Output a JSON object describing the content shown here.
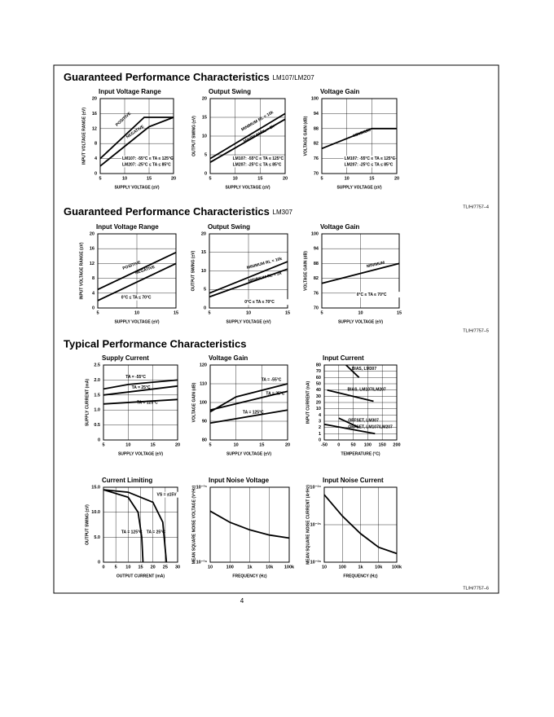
{
  "sections": [
    {
      "title": "Guaranteed Performance Characteristics",
      "subtitle": "LM107/LM207",
      "figure_id": "TL/H/7757–4"
    },
    {
      "title": "Guaranteed Performance Characteristics",
      "subtitle": "LM307",
      "figure_id": "TL/H/7757–5"
    },
    {
      "title": "Typical Performance Characteristics",
      "figure_id": "TL/H/7757–6"
    }
  ],
  "page_number": "4",
  "chart_data": [
    {
      "type": "line",
      "title": "Input Voltage Range",
      "xlabel": "SUPPLY VOLTAGE (±V)",
      "ylabel": "INPUT VOLTAGE RANGE (±V)",
      "xlim": [
        5,
        20
      ],
      "xticks": [
        5,
        10,
        15,
        20
      ],
      "ylim": [
        0,
        20
      ],
      "yticks": [
        0,
        4,
        8,
        12,
        16,
        20
      ],
      "grid": true,
      "series": [
        {
          "name": "POSITIVE",
          "color": "#000",
          "x": [
            5,
            14,
            20
          ],
          "values": [
            4,
            15,
            15
          ]
        },
        {
          "name": "NEGATIVE",
          "color": "#000",
          "x": [
            5,
            15,
            20
          ],
          "values": [
            2,
            12.5,
            15
          ]
        }
      ],
      "annotations": [
        "LM107: -55°C ≤ TA ≤ 125°C",
        "LM207: -25°C ≤ TA ≤ 85°C"
      ]
    },
    {
      "type": "line",
      "title": "Output Swing",
      "xlabel": "SUPPLY VOLTAGE (±V)",
      "ylabel": "OUTPUT SWING (±V)",
      "xlim": [
        5,
        20
      ],
      "xticks": [
        5,
        10,
        15,
        20
      ],
      "ylim": [
        0,
        20
      ],
      "yticks": [
        0,
        5,
        10,
        15,
        20
      ],
      "grid": true,
      "series": [
        {
          "name": "MINIMUM RL = 10k",
          "color": "#000",
          "x": [
            5,
            20
          ],
          "values": [
            4,
            16
          ]
        },
        {
          "name": "MINIMUM RL = 2k",
          "color": "#000",
          "x": [
            5,
            20
          ],
          "values": [
            3,
            14.5
          ]
        }
      ],
      "annotations": [
        "LM107: -55°C ≤ TA ≤ 125°C",
        "LM207: -25°C ≤ TA ≤ 85°C"
      ]
    },
    {
      "type": "line",
      "title": "Voltage Gain",
      "xlabel": "SUPPLY VOLTAGE (±V)",
      "ylabel": "VOLTAGE GAIN (dB)",
      "xlim": [
        5,
        20
      ],
      "xticks": [
        5,
        10,
        15,
        20
      ],
      "ylim": [
        70,
        100
      ],
      "yticks": [
        70,
        76,
        82,
        88,
        94,
        100
      ],
      "grid": true,
      "series": [
        {
          "name": "MINIMUM",
          "color": "#000",
          "x": [
            5,
            15,
            20
          ],
          "values": [
            80,
            88,
            88
          ]
        }
      ],
      "annotations": [
        "LM107: -55°C ≤ TA ≤ 125°C",
        "LM207: -25°C ≤ TA ≤ 85°C"
      ]
    },
    {
      "type": "line",
      "title": "Input Voltage Range",
      "xlabel": "SUPPLY VOLTAGE (±V)",
      "ylabel": "INPUT VOLTAGE RANGE (±V)",
      "xlim": [
        5,
        15
      ],
      "xticks": [
        5,
        10,
        15
      ],
      "ylim": [
        0,
        20
      ],
      "yticks": [
        0,
        4,
        8,
        12,
        16,
        20
      ],
      "grid": true,
      "series": [
        {
          "name": "POSITIVE",
          "color": "#000",
          "x": [
            5,
            15
          ],
          "values": [
            5,
            15
          ]
        },
        {
          "name": "NEGATIVE",
          "color": "#000",
          "x": [
            5,
            15
          ],
          "values": [
            2,
            12
          ]
        }
      ],
      "annotations": [
        "0°C ≤ TA ≤ 70°C"
      ]
    },
    {
      "type": "line",
      "title": "Output Swing",
      "xlabel": "SUPPLY VOLTAGE (±V)",
      "ylabel": "OUTPUT SWING (±V)",
      "xlim": [
        5,
        15
      ],
      "xticks": [
        5,
        10,
        15
      ],
      "ylim": [
        0,
        20
      ],
      "yticks": [
        0,
        5,
        10,
        15,
        20
      ],
      "grid": true,
      "series": [
        {
          "name": "MINIMUM RL = 10k",
          "color": "#000",
          "x": [
            5,
            15
          ],
          "values": [
            4,
            12.5
          ]
        },
        {
          "name": "MINIMUM RL = 2k",
          "color": "#000",
          "x": [
            5,
            15
          ],
          "values": [
            3,
            10.5
          ]
        }
      ],
      "annotations": [
        "0°C ≤ TA ≤ 70°C"
      ]
    },
    {
      "type": "line",
      "title": "Voltage Gain",
      "xlabel": "SUPPLY VOLTAGE (±V)",
      "ylabel": "VOLTAGE GAIN (dB)",
      "xlim": [
        5,
        15
      ],
      "xticks": [
        5,
        10,
        15
      ],
      "ylim": [
        70,
        100
      ],
      "yticks": [
        70,
        76,
        82,
        88,
        94,
        100
      ],
      "grid": true,
      "series": [
        {
          "name": "MINIMUM",
          "color": "#000",
          "x": [
            5,
            15
          ],
          "values": [
            80,
            88
          ]
        }
      ],
      "annotations": [
        "0°C ≤ TA ≤ 70°C"
      ]
    },
    {
      "type": "line",
      "title": "Supply Current",
      "xlabel": "SUPPLY VOLTAGE (±V)",
      "ylabel": "SUPPLY CURRENT (mA)",
      "xlim": [
        5,
        20
      ],
      "xticks": [
        5,
        10,
        15,
        20
      ],
      "ylim": [
        0,
        2.5
      ],
      "yticks": [
        0,
        0.5,
        {
          "value": 1,
          "label": "1.0"
        },
        1.5,
        {
          "value": 2,
          "label": "2.0"
        },
        2.5
      ],
      "grid": true,
      "series": [
        {
          "name": "TA = -55°C",
          "color": "#000",
          "x": [
            5,
            10,
            20
          ],
          "values": [
            1.7,
            1.85,
            2.0
          ]
        },
        {
          "name": "TA = 25°C",
          "color": "#000",
          "x": [
            5,
            20
          ],
          "values": [
            1.5,
            1.8
          ]
        },
        {
          "name": "TA = 125°C",
          "color": "#000",
          "x": [
            5,
            20
          ],
          "values": [
            1.2,
            1.35
          ]
        }
      ]
    },
    {
      "type": "line",
      "title": "Voltage Gain",
      "xlabel": "SUPPLY VOLTAGE (±V)",
      "ylabel": "VOLTAGE GAIN (dB)",
      "xlim": [
        5,
        20
      ],
      "xticks": [
        5,
        10,
        15,
        20
      ],
      "ylim": [
        80,
        120
      ],
      "yticks": [
        80,
        90,
        100,
        110,
        120
      ],
      "grid": true,
      "series": [
        {
          "name": "TA = -55°C",
          "color": "#000",
          "x": [
            5,
            10,
            20
          ],
          "values": [
            95,
            103,
            110
          ]
        },
        {
          "name": "TA = 25°C",
          "color": "#000",
          "x": [
            5,
            20
          ],
          "values": [
            96,
            106
          ]
        },
        {
          "name": "TA = 125°C",
          "color": "#000",
          "x": [
            5,
            20
          ],
          "values": [
            89,
            96
          ]
        }
      ]
    },
    {
      "type": "line",
      "title": "Input Current",
      "xlabel": "TEMPERATURE (°C)",
      "ylabel": "INPUT CURRENT (nA)",
      "xlim": [
        -50,
        200
      ],
      "xticks": [
        -50,
        0,
        50,
        100,
        150,
        200
      ],
      "ylim": [
        0,
        80
      ],
      "yticks": [
        0,
        1,
        2,
        3,
        4,
        10,
        20,
        30,
        40,
        50,
        60,
        70,
        80
      ],
      "grid": true,
      "series": [
        {
          "name": "BIAS, LM307",
          "color": "#000",
          "x": [
            25,
            70
          ],
          "values": [
            80,
            60
          ]
        },
        {
          "name": "BIAS, LM107/LM207",
          "color": "#000",
          "x": [
            -40,
            120
          ],
          "values": [
            40,
            22
          ]
        },
        {
          "name": "OFFSET, LM307",
          "color": "#000",
          "x": [
            0,
            70
          ],
          "values": [
            3.5,
            2
          ]
        },
        {
          "name": "OFFSET, LM107/LM207",
          "color": "#000",
          "x": [
            -50,
            125
          ],
          "values": [
            2.5,
            1
          ]
        }
      ]
    },
    {
      "type": "line",
      "title": "Current Limiting",
      "xlabel": "OUTPUT CURRENT (mA)",
      "ylabel": "OUTPUT SWING (±V)",
      "xlim": [
        0,
        30
      ],
      "xticks": [
        0,
        5,
        10,
        15,
        20,
        25,
        30
      ],
      "ylim": [
        0,
        15
      ],
      "yticks": [
        0,
        {
          "value": 5,
          "label": "5.0"
        },
        {
          "value": 10,
          "label": "10.0"
        },
        {
          "value": 15,
          "label": "15.0"
        }
      ],
      "grid": true,
      "series": [
        {
          "name": "TA = 125°C",
          "color": "#000",
          "x": [
            0,
            10,
            14,
            15.5,
            16
          ],
          "values": [
            14.5,
            13,
            10,
            5,
            0
          ]
        },
        {
          "name": "TA = 25°C",
          "color": "#000",
          "x": [
            0,
            10,
            20,
            24,
            25.5
          ],
          "values": [
            14.5,
            14,
            12,
            8,
            0
          ]
        }
      ],
      "annotations": [
        "VS = ±15V"
      ]
    },
    {
      "type": "line",
      "title": "Input Noise Voltage",
      "xlabel": "FREQUENCY (Hz)",
      "ylabel": "MEAN SQUARE NOISE VOLTAGE (V²/Hz)",
      "xlog": true,
      "ylog": true,
      "xlim": [
        10,
        100000
      ],
      "xticks": [
        10,
        100,
        {
          "value": 1000,
          "label": "1k"
        },
        {
          "value": 10000,
          "label": "10k"
        },
        {
          "value": 100000,
          "label": "100k"
        }
      ],
      "ylim": [
        1e-16,
        1e-15
      ],
      "yticks": [
        {
          "value": 1e-16,
          "label": "10⁻¹⁶"
        },
        {
          "value": 1e-15,
          "label": "10⁻¹⁵"
        }
      ],
      "grid": true,
      "series": [
        {
          "color": "#000",
          "x": [
            10,
            100,
            1000,
            10000,
            100000
          ],
          "values": [
            4.8e-16,
            3.4e-16,
            2.7e-16,
            2.3e-16,
            2.1e-16
          ]
        }
      ]
    },
    {
      "type": "line",
      "title": "Input Noise Current",
      "xlabel": "FREQUENCY (Hz)",
      "ylabel": "MEAN SQUARE NOISE CURRENT (A²/Hz)",
      "xlog": true,
      "ylog": true,
      "xlim": [
        10,
        100000
      ],
      "xticks": [
        10,
        100,
        {
          "value": 1000,
          "label": "1k"
        },
        {
          "value": 10000,
          "label": "10k"
        },
        {
          "value": 100000,
          "label": "100k"
        }
      ],
      "ylim": [
        1e-26,
        1e-24
      ],
      "yticks": [
        {
          "value": 1e-26,
          "label": "10⁻²⁶"
        },
        {
          "value": 1e-25,
          "label": "10⁻²⁵"
        },
        {
          "value": 1e-24,
          "label": "10⁻²⁴"
        }
      ],
      "grid": true,
      "series": [
        {
          "color": "#000",
          "x": [
            10,
            100,
            1000,
            10000,
            100000
          ],
          "values": [
            6.3e-25,
            1.7e-25,
            5.8e-26,
            2.5e-26,
            1.7e-26
          ]
        }
      ]
    }
  ]
}
